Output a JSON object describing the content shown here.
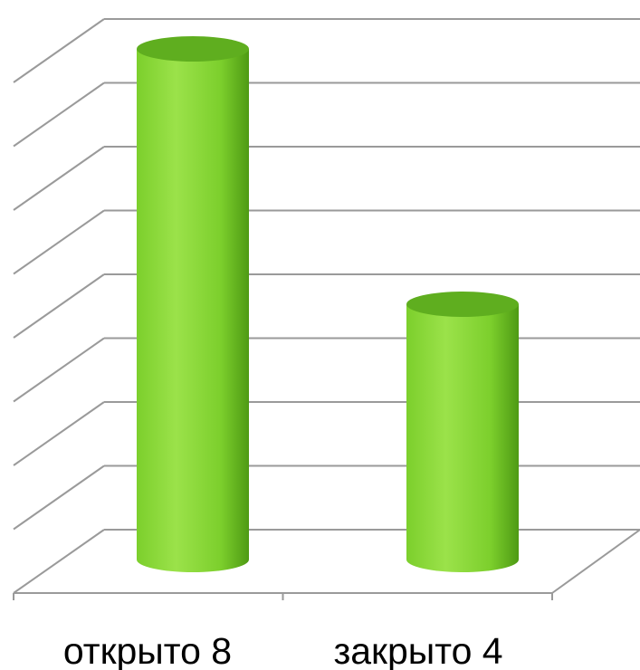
{
  "chart_data": {
    "type": "bar",
    "style": "3d-cylinder",
    "categories": [
      "открыто 8",
      "закрыто 4"
    ],
    "values": [
      8,
      4
    ],
    "title": "",
    "xlabel": "",
    "ylabel": "",
    "ylim": [
      0,
      8
    ],
    "grid": true,
    "legend": "none",
    "colors": {
      "bar_light": "#9be24a",
      "bar_mid": "#7ccf2c",
      "bar_dark": "#4e9a14",
      "bar_top": "#5fae1f",
      "grid": "#9a9a9a"
    }
  }
}
